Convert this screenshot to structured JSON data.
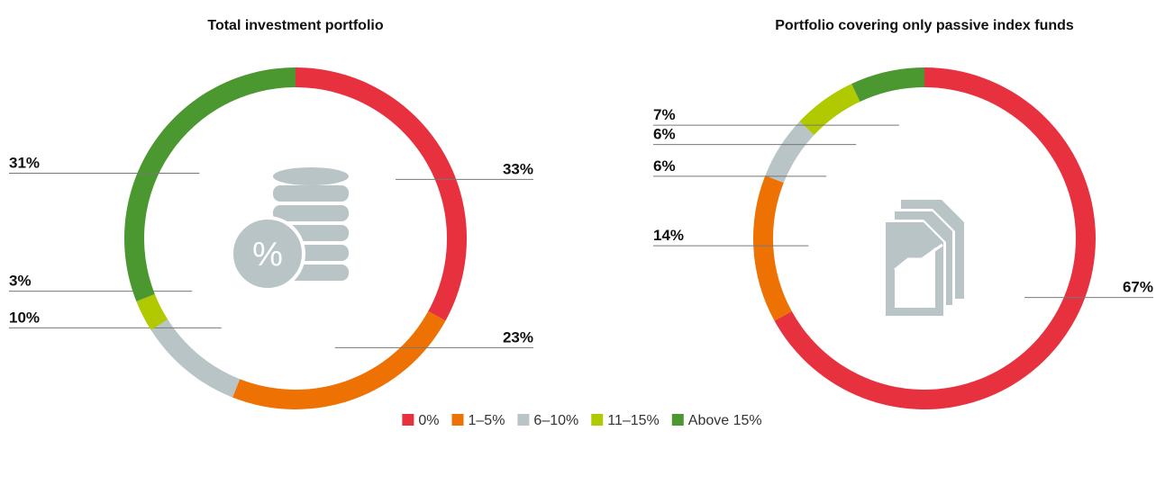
{
  "chart_data": [
    {
      "type": "pie",
      "title": "Total investment portfolio",
      "categories": [
        "0%",
        "1–5%",
        "6–10%",
        "11–15%",
        "Above 15%"
      ],
      "values": [
        33,
        23,
        10,
        3,
        31
      ],
      "value_labels": [
        "33%",
        "23%",
        "10%",
        "3%",
        "31%"
      ],
      "colors": [
        "#e8313f",
        "#ee7203",
        "#b9c4c6",
        "#b0c900",
        "#4a982f"
      ]
    },
    {
      "type": "pie",
      "title": "Portfolio covering only passive index funds",
      "categories": [
        "0%",
        "1–5%",
        "6–10%",
        "11–15%",
        "Above 15%"
      ],
      "values": [
        67,
        14,
        6,
        6,
        7
      ],
      "value_labels": [
        "67%",
        "14%",
        "6%",
        "6%",
        "7%"
      ],
      "colors": [
        "#e8313f",
        "#ee7203",
        "#b9c4c6",
        "#b0c900",
        "#4a982f"
      ]
    }
  ]
}
